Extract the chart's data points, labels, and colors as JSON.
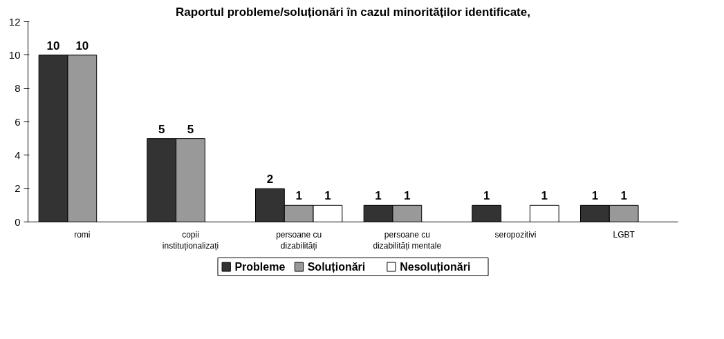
{
  "chart_data": {
    "type": "bar",
    "title": "Raportul probleme/soluționări în cazul minorităților identificate,",
    "categories": [
      "romi",
      "copii instituționalizați",
      "persoane cu dizabilități",
      "persoane cu dizabilități mentale",
      "seropozitivi",
      "LGBT"
    ],
    "series": [
      {
        "name": "Probleme",
        "color": "#333333",
        "values": [
          10,
          5,
          2,
          1,
          1,
          1
        ]
      },
      {
        "name": "Soluționări",
        "color": "#999999",
        "values": [
          10,
          5,
          1,
          1,
          null,
          1
        ]
      },
      {
        "name": "Nesoluționări",
        "color": "#ffffff",
        "values": [
          null,
          null,
          1,
          null,
          1,
          null
        ]
      }
    ],
    "ylim": [
      0,
      12
    ],
    "yticks": [
      0,
      2,
      4,
      6,
      8,
      10,
      12
    ],
    "grid": false,
    "legend": "bottom",
    "data_labels": true
  }
}
